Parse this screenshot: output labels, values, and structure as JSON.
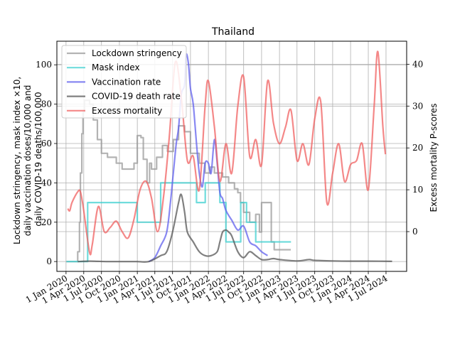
{
  "chart_data": {
    "type": "line",
    "title": "Thailand",
    "ylabel_left": [
      "Lockdown stringency, mask index ×10,",
      "daily vaccination doses/10,000 and",
      "daily COVID-19 deaths/100,000"
    ],
    "ylabel_right": "Excess mortality P-scores",
    "ylim_left": [
      -5,
      112
    ],
    "ylim_right": [
      -9.5,
      45.5
    ],
    "yticks_left": [
      0,
      20,
      40,
      60,
      80,
      100
    ],
    "yticks_right": [
      0,
      10,
      20,
      30,
      40
    ],
    "xlim": [
      "2019-11-15",
      "2024-10-15"
    ],
    "xticks": [
      {
        "date": "2020-01-01",
        "label": "1 Jan 2020"
      },
      {
        "date": "2020-04-01",
        "label": "1 Apr 2020"
      },
      {
        "date": "2020-07-01",
        "label": "1 Jul 2020"
      },
      {
        "date": "2020-10-01",
        "label": "1 Oct 2020"
      },
      {
        "date": "2021-01-01",
        "label": "1 Jan 2021"
      },
      {
        "date": "2021-04-01",
        "label": "1 Apr 2021"
      },
      {
        "date": "2021-07-01",
        "label": "1 Jul 2021"
      },
      {
        "date": "2021-10-01",
        "label": "1 Oct 2021"
      },
      {
        "date": "2022-01-01",
        "label": "1 Jan 2022"
      },
      {
        "date": "2022-04-01",
        "label": "1 Apr 2022"
      },
      {
        "date": "2022-07-01",
        "label": "1 Jul 2022"
      },
      {
        "date": "2022-10-01",
        "label": "1 Oct 2022"
      },
      {
        "date": "2023-01-01",
        "label": "1 Jan 2023"
      },
      {
        "date": "2023-04-01",
        "label": "1 Apr 2023"
      },
      {
        "date": "2023-07-01",
        "label": "1 Jul 2023"
      },
      {
        "date": "2023-10-01",
        "label": "1 Oct 2023"
      },
      {
        "date": "2024-01-01",
        "label": "1 Jan 2024"
      },
      {
        "date": "2024-04-01",
        "label": "1 Apr 2024"
      },
      {
        "date": "2024-07-01",
        "label": "1 Jul 2024"
      }
    ],
    "grid": true,
    "legend_position": "top-left",
    "series": [
      {
        "name": "Lockdown stringency",
        "color": "#999999",
        "axis": "left",
        "step": true,
        "points": [
          [
            "2020-01-03",
            0
          ],
          [
            "2020-02-15",
            0
          ],
          [
            "2020-03-01",
            5
          ],
          [
            "2020-03-10",
            20
          ],
          [
            "2020-03-15",
            45
          ],
          [
            "2020-03-22",
            65
          ],
          [
            "2020-03-28",
            76
          ],
          [
            "2020-04-05",
            82
          ],
          [
            "2020-05-01",
            80
          ],
          [
            "2020-05-20",
            72
          ],
          [
            "2020-06-10",
            62
          ],
          [
            "2020-07-01",
            55
          ],
          [
            "2020-08-01",
            53
          ],
          [
            "2020-09-15",
            50
          ],
          [
            "2020-10-15",
            47
          ],
          [
            "2020-12-15",
            50
          ],
          [
            "2021-01-01",
            64
          ],
          [
            "2021-01-20",
            63
          ],
          [
            "2021-02-01",
            52
          ],
          [
            "2021-02-20",
            40
          ],
          [
            "2021-03-05",
            50
          ],
          [
            "2021-03-15",
            47
          ],
          [
            "2021-04-10",
            53
          ],
          [
            "2021-05-10",
            59
          ],
          [
            "2021-06-05",
            56
          ],
          [
            "2021-07-05",
            62
          ],
          [
            "2021-08-01",
            69
          ],
          [
            "2021-09-01",
            66
          ],
          [
            "2021-10-01",
            55
          ],
          [
            "2021-11-15",
            50
          ],
          [
            "2021-12-15",
            45
          ],
          [
            "2022-01-10",
            48
          ],
          [
            "2022-02-01",
            45
          ],
          [
            "2022-03-15",
            43
          ],
          [
            "2022-04-15",
            40
          ],
          [
            "2022-05-15",
            37
          ],
          [
            "2022-06-01",
            35
          ],
          [
            "2022-06-15",
            30
          ],
          [
            "2022-07-01",
            25
          ],
          [
            "2022-08-01",
            20
          ],
          [
            "2022-09-01",
            24
          ],
          [
            "2022-09-20",
            15
          ],
          [
            "2022-10-01",
            30
          ],
          [
            "2022-11-20",
            10
          ],
          [
            "2022-12-05",
            6
          ],
          [
            "2023-02-28",
            6
          ]
        ]
      },
      {
        "name": "Mask index",
        "color": "#40d0d0",
        "axis": "left",
        "step": true,
        "points": [
          [
            "2020-01-03",
            0
          ],
          [
            "2020-04-20",
            0
          ],
          [
            "2020-04-21",
            30
          ],
          [
            "2020-12-31",
            30
          ],
          [
            "2021-01-01",
            20
          ],
          [
            "2021-04-30",
            20
          ],
          [
            "2021-05-01",
            40
          ],
          [
            "2021-10-31",
            40
          ],
          [
            "2021-11-01",
            30
          ],
          [
            "2021-12-15",
            30
          ],
          [
            "2021-12-16",
            40
          ],
          [
            "2022-02-28",
            40
          ],
          [
            "2022-03-01",
            30
          ],
          [
            "2022-03-31",
            30
          ],
          [
            "2022-04-01",
            10
          ],
          [
            "2022-06-15",
            10
          ],
          [
            "2022-06-16",
            30
          ],
          [
            "2022-07-15",
            30
          ],
          [
            "2022-07-16",
            20
          ],
          [
            "2022-08-31",
            20
          ],
          [
            "2022-09-01",
            10
          ],
          [
            "2023-03-01",
            10
          ]
        ]
      },
      {
        "name": "Vaccination rate",
        "color": "#6060ee",
        "axis": "left",
        "step": false,
        "points": [
          [
            "2021-03-01",
            0
          ],
          [
            "2021-04-01",
            2
          ],
          [
            "2021-05-01",
            8
          ],
          [
            "2021-06-01",
            15
          ],
          [
            "2021-06-20",
            30
          ],
          [
            "2021-07-05",
            45
          ],
          [
            "2021-07-20",
            60
          ],
          [
            "2021-08-01",
            68
          ],
          [
            "2021-08-15",
            85
          ],
          [
            "2021-09-01",
            90
          ],
          [
            "2021-09-08",
            105
          ],
          [
            "2021-09-20",
            101
          ],
          [
            "2021-10-01",
            88
          ],
          [
            "2021-10-15",
            80
          ],
          [
            "2021-11-01",
            60
          ],
          [
            "2021-11-15",
            45
          ],
          [
            "2021-12-01",
            38
          ],
          [
            "2021-12-15",
            50
          ],
          [
            "2022-01-01",
            50
          ],
          [
            "2022-01-15",
            45
          ],
          [
            "2022-02-01",
            62
          ],
          [
            "2022-02-15",
            50
          ],
          [
            "2022-03-01",
            35
          ],
          [
            "2022-03-15",
            32
          ],
          [
            "2022-04-01",
            26
          ],
          [
            "2022-05-01",
            21
          ],
          [
            "2022-06-01",
            16
          ],
          [
            "2022-07-01",
            18
          ],
          [
            "2022-08-01",
            10
          ],
          [
            "2022-09-01",
            8
          ],
          [
            "2022-10-01",
            5
          ],
          [
            "2022-11-01",
            3
          ]
        ]
      },
      {
        "name": "COVID-19 death rate",
        "color": "#555555",
        "axis": "left",
        "step": false,
        "points": [
          [
            "2020-03-01",
            0
          ],
          [
            "2020-05-01",
            0.2
          ],
          [
            "2020-08-01",
            0
          ],
          [
            "2020-10-01",
            0
          ],
          [
            "2020-11-25",
            0
          ],
          [
            "2021-01-01",
            0
          ],
          [
            "2021-03-01",
            0
          ],
          [
            "2021-05-01",
            3
          ],
          [
            "2021-06-01",
            5
          ],
          [
            "2021-07-01",
            15
          ],
          [
            "2021-08-01",
            30
          ],
          [
            "2021-08-15",
            34
          ],
          [
            "2021-09-01",
            25
          ],
          [
            "2021-09-15",
            15
          ],
          [
            "2021-10-15",
            10
          ],
          [
            "2021-11-15",
            5
          ],
          [
            "2021-12-15",
            3
          ],
          [
            "2022-01-15",
            3
          ],
          [
            "2022-02-15",
            5
          ],
          [
            "2022-03-01",
            10
          ],
          [
            "2022-03-15",
            15
          ],
          [
            "2022-04-01",
            16
          ],
          [
            "2022-04-15",
            15
          ],
          [
            "2022-05-01",
            13
          ],
          [
            "2022-06-01",
            5
          ],
          [
            "2022-07-01",
            2
          ],
          [
            "2022-08-01",
            5
          ],
          [
            "2022-09-01",
            3
          ],
          [
            "2022-10-01",
            1
          ],
          [
            "2022-11-01",
            1
          ],
          [
            "2022-12-01",
            1.5
          ],
          [
            "2023-01-01",
            1
          ],
          [
            "2023-04-01",
            0.3
          ],
          [
            "2023-06-01",
            1
          ],
          [
            "2023-07-01",
            0.6
          ],
          [
            "2023-10-01",
            0.3
          ],
          [
            "2024-01-01",
            0.2
          ],
          [
            "2024-04-01",
            0.2
          ],
          [
            "2024-08-01",
            0.1
          ]
        ]
      },
      {
        "name": "Excess mortality",
        "color": "#f06060",
        "axis": "right",
        "step": false,
        "points": [
          [
            "2020-01-10",
            5.5
          ],
          [
            "2020-01-20",
            5
          ],
          [
            "2020-02-01",
            7
          ],
          [
            "2020-03-01",
            9.5
          ],
          [
            "2020-03-15",
            9.5
          ],
          [
            "2020-04-01",
            5
          ],
          [
            "2020-05-01",
            -5
          ],
          [
            "2020-05-15",
            -3
          ],
          [
            "2020-06-15",
            6
          ],
          [
            "2020-07-15",
            0
          ],
          [
            "2020-08-15",
            1
          ],
          [
            "2020-09-15",
            2.5
          ],
          [
            "2020-10-15",
            0
          ],
          [
            "2020-11-15",
            -1.5
          ],
          [
            "2020-12-15",
            3
          ],
          [
            "2021-01-15",
            10
          ],
          [
            "2021-02-15",
            12
          ],
          [
            "2021-03-15",
            8
          ],
          [
            "2021-04-15",
            0
          ],
          [
            "2021-05-15",
            8
          ],
          [
            "2021-06-15",
            23
          ],
          [
            "2021-07-15",
            40.5
          ],
          [
            "2021-08-15",
            32
          ],
          [
            "2021-09-15",
            17
          ],
          [
            "2021-10-15",
            18
          ],
          [
            "2021-11-15",
            10
          ],
          [
            "2021-12-15",
            30
          ],
          [
            "2022-01-01",
            36
          ],
          [
            "2022-02-01",
            25
          ],
          [
            "2022-03-01",
            12
          ],
          [
            "2022-04-01",
            21
          ],
          [
            "2022-05-01",
            14
          ],
          [
            "2022-06-01",
            30
          ],
          [
            "2022-07-01",
            37
          ],
          [
            "2022-08-01",
            18
          ],
          [
            "2022-09-01",
            22
          ],
          [
            "2022-10-01",
            16
          ],
          [
            "2022-11-01",
            36
          ],
          [
            "2022-12-01",
            26
          ],
          [
            "2023-01-01",
            21
          ],
          [
            "2023-02-01",
            25
          ],
          [
            "2023-03-01",
            29
          ],
          [
            "2023-04-01",
            17
          ],
          [
            "2023-05-01",
            21
          ],
          [
            "2023-06-01",
            16
          ],
          [
            "2023-07-01",
            27
          ],
          [
            "2023-08-01",
            31
          ],
          [
            "2023-09-01",
            7
          ],
          [
            "2023-10-01",
            14
          ],
          [
            "2023-11-01",
            21
          ],
          [
            "2023-12-01",
            12
          ],
          [
            "2024-01-01",
            16
          ],
          [
            "2024-02-01",
            17
          ],
          [
            "2024-03-01",
            21
          ],
          [
            "2024-04-01",
            10
          ],
          [
            "2024-05-01",
            30
          ],
          [
            "2024-05-20",
            43
          ],
          [
            "2024-06-15",
            25
          ],
          [
            "2024-06-28",
            18.5
          ]
        ]
      }
    ]
  }
}
